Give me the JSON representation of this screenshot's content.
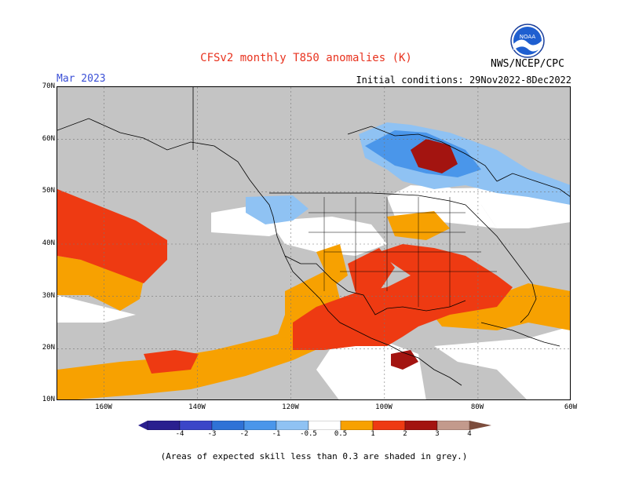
{
  "title": "CFSv2 monthly T850 anomalies (K)",
  "agency": "NWS/NCEP/CPC",
  "logo": {
    "name": "noaa-logo",
    "text": "NOAA"
  },
  "month_label": "Mar 2023",
  "initial_conditions": "Initial conditions: 29Nov2022-8Dec2022",
  "map": {
    "lat_labels": [
      "70N",
      "60N",
      "50N",
      "40N",
      "30N",
      "20N",
      "10N"
    ],
    "lon_labels": [
      "160W",
      "140W",
      "120W",
      "100W",
      "80W",
      "60W"
    ],
    "lat_range": [
      10,
      70
    ],
    "lon_range": [
      -170,
      -60
    ]
  },
  "colorbar": {
    "labels": [
      "-4",
      "-3",
      "-2",
      "-1",
      "-0.5",
      "0.5",
      "1",
      "2",
      "3",
      "4"
    ],
    "colors": [
      "#2a1f8f",
      "#3b46c8",
      "#2f72d6",
      "#4a96ea",
      "#8fc2f3",
      "#ffffff",
      "#f7a101",
      "#ee3a12",
      "#a31410",
      "#c39a8c",
      "#7c4d3d"
    ],
    "legend": [
      {
        "range": "< -4",
        "color": "#2a1f8f"
      },
      {
        "range": "-4 to -3",
        "color": "#3b46c8"
      },
      {
        "range": "-3 to -2",
        "color": "#2f72d6"
      },
      {
        "range": "-2 to -1",
        "color": "#4a96ea"
      },
      {
        "range": "-1 to -0.5",
        "color": "#8fc2f3"
      },
      {
        "range": "-0.5 to 0.5",
        "color": "#ffffff"
      },
      {
        "range": "0.5 to 1",
        "color": "#f7a101"
      },
      {
        "range": "1 to 2",
        "color": "#ee3a12"
      },
      {
        "range": "2 to 3",
        "color": "#a31410"
      },
      {
        "range": "3 to 4",
        "color": "#c39a8c"
      },
      {
        "range": "> 4",
        "color": "#7c4d3d"
      }
    ]
  },
  "skill_color": "#c4c4c4",
  "footnote": "(Areas of expected skill less than 0.3 are shaded in grey.)"
}
